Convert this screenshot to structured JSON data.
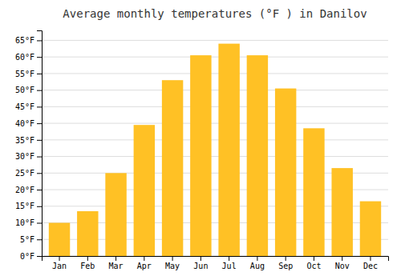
{
  "chart_data": {
    "type": "bar",
    "title": "Average monthly temperatures (°F ) in Danilov",
    "categories": [
      "Jan",
      "Feb",
      "Mar",
      "Apr",
      "May",
      "Jun",
      "Jul",
      "Aug",
      "Sep",
      "Oct",
      "Nov",
      "Dec"
    ],
    "values": [
      10,
      13.5,
      25,
      39.5,
      53,
      60.5,
      64,
      60.5,
      50.5,
      38.5,
      26.5,
      16.5
    ],
    "color": "#FFC125",
    "ylim": [
      0,
      68
    ],
    "yticks": [
      {
        "value": 0,
        "label": "0°F"
      },
      {
        "value": 5,
        "label": "5°F"
      },
      {
        "value": 10,
        "label": "10°F"
      },
      {
        "value": 15,
        "label": "15°F"
      },
      {
        "value": 20,
        "label": "20°F"
      },
      {
        "value": 25,
        "label": "25°F"
      },
      {
        "value": 30,
        "label": "30°F"
      },
      {
        "value": 35,
        "label": "35°F"
      },
      {
        "value": 40,
        "label": "40°F"
      },
      {
        "value": 45,
        "label": "45°F"
      },
      {
        "value": 50,
        "label": "50°F"
      },
      {
        "value": 55,
        "label": "55°F"
      },
      {
        "value": 60,
        "label": "60°F"
      },
      {
        "value": 65,
        "label": "65°F"
      }
    ],
    "grid": true
  }
}
